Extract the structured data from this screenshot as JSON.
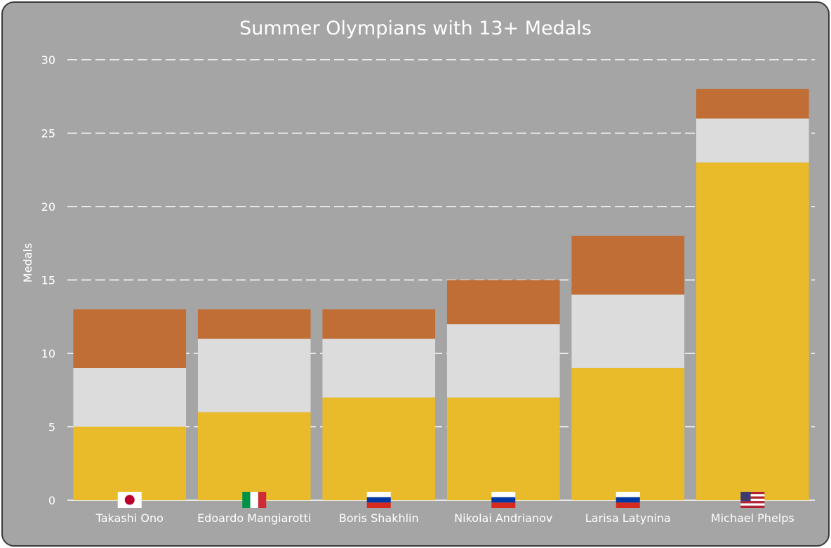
{
  "chart_data": {
    "type": "bar",
    "stacked": true,
    "title": "Summer Olympians with 13+ Medals",
    "xlabel": "",
    "ylabel": "Medals",
    "ylim": [
      0,
      30
    ],
    "yticks": [
      0,
      5,
      10,
      15,
      20,
      25,
      30
    ],
    "grid": true,
    "legend": "none",
    "categories": [
      "Takashi Ono",
      "Edoardo Mangiarotti",
      "Boris Shakhlin",
      "Nikolai Andrianov",
      "Larisa Latynina",
      "Michael Phelps"
    ],
    "category_flags": [
      "japan-flag-icon",
      "italy-flag-icon",
      "russia-flag-icon",
      "russia-flag-icon",
      "russia-flag-icon",
      "usa-flag-icon"
    ],
    "series": [
      {
        "color": "#e9bb2b",
        "values": [
          5,
          6,
          7,
          7,
          9,
          23
        ]
      },
      {
        "color": "#dcdcdc",
        "values": [
          4,
          5,
          4,
          5,
          5,
          3
        ]
      },
      {
        "color": "#c06d36",
        "values": [
          4,
          2,
          2,
          3,
          4,
          2
        ]
      }
    ]
  },
  "colors": {
    "background": "#a5a5a5",
    "border": "#3a3a3a",
    "gridline": "#ffffff",
    "text": "#ffffff"
  }
}
